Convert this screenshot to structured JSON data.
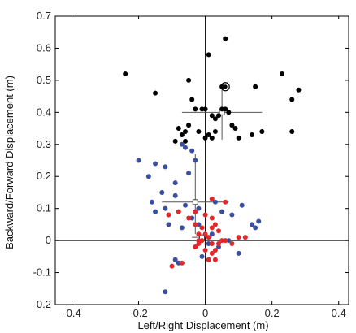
{
  "chart_data": {
    "type": "scatter",
    "title": "",
    "xlabel": "Left/Right Displacement (m)",
    "ylabel": "Backward/Forward Displacement (m)",
    "xlim": [
      -0.45,
      0.43
    ],
    "ylim": [
      -0.2,
      0.7
    ],
    "xticks": [
      -0.4,
      -0.2,
      0,
      0.2,
      0.4
    ],
    "xtick_labels": [
      "-0.4",
      "-0.2",
      "0",
      "0.2",
      "0.4"
    ],
    "yticks": [
      -0.2,
      -0.1,
      0,
      0.1,
      0.2,
      0.3,
      0.4,
      0.5,
      0.6,
      0.7
    ],
    "ytick_labels": [
      "-0.2",
      "-0.1",
      "0",
      "0.1",
      "0.2",
      "0.3",
      "0.4",
      "0.5",
      "0.6",
      "0.7"
    ],
    "grid": false,
    "zero_lines": true,
    "colors": {
      "black": "#000000",
      "blue": "#3a4fa0",
      "red": "#e0282a",
      "axis": "#000000",
      "errorbar": "#555555"
    },
    "series": [
      {
        "color": "black",
        "points": [
          [
            -0.24,
            0.52
          ],
          [
            -0.15,
            0.46
          ],
          [
            -0.05,
            0.5
          ],
          [
            0.01,
            0.58
          ],
          [
            0.06,
            0.63
          ],
          [
            0.05,
            0.48
          ],
          [
            0.15,
            0.48
          ],
          [
            0.23,
            0.52
          ],
          [
            0.26,
            0.44
          ],
          [
            0.28,
            0.47
          ],
          [
            0.26,
            0.34
          ],
          [
            -0.03,
            0.41
          ],
          [
            -0.04,
            0.44
          ],
          [
            -0.01,
            0.41
          ],
          [
            0.0,
            0.41
          ],
          [
            0.02,
            0.39
          ],
          [
            0.04,
            0.39
          ],
          [
            0.06,
            0.41
          ],
          [
            0.07,
            0.4
          ],
          [
            0.05,
            0.41
          ],
          [
            0.03,
            0.38
          ],
          [
            0.08,
            0.36
          ],
          [
            0.09,
            0.35
          ],
          [
            0.1,
            0.32
          ],
          [
            0.14,
            0.33
          ],
          [
            0.17,
            0.34
          ],
          [
            -0.07,
            0.33
          ],
          [
            -0.06,
            0.34
          ],
          [
            -0.08,
            0.35
          ],
          [
            -0.05,
            0.36
          ],
          [
            -0.02,
            0.34
          ],
          [
            0.0,
            0.32
          ],
          [
            0.01,
            0.33
          ],
          [
            0.02,
            0.32
          ],
          [
            0.03,
            0.34
          ],
          [
            -0.06,
            0.31
          ],
          [
            -0.09,
            0.31
          ]
        ]
      },
      {
        "color": "blue",
        "points": [
          [
            -0.2,
            0.25
          ],
          [
            -0.17,
            0.2
          ],
          [
            -0.15,
            0.24
          ],
          [
            -0.12,
            0.23
          ],
          [
            -0.13,
            0.15
          ],
          [
            -0.09,
            0.18
          ],
          [
            -0.05,
            0.21
          ],
          [
            -0.03,
            0.25
          ],
          [
            -0.04,
            0.28
          ],
          [
            -0.07,
            0.3
          ],
          [
            -0.06,
            0.29
          ],
          [
            -0.16,
            0.12
          ],
          [
            -0.15,
            0.09
          ],
          [
            -0.12,
            0.1
          ],
          [
            -0.11,
            0.05
          ],
          [
            -0.09,
            0.14
          ],
          [
            -0.06,
            0.11
          ],
          [
            -0.02,
            0.1
          ],
          [
            0.03,
            0.12
          ],
          [
            0.05,
            0.09
          ],
          [
            0.08,
            0.08
          ],
          [
            0.11,
            0.11
          ],
          [
            0.14,
            0.05
          ],
          [
            0.15,
            0.04
          ],
          [
            0.16,
            0.06
          ],
          [
            -0.07,
            0.04
          ],
          [
            -0.04,
            0.07
          ],
          [
            -0.02,
            0.05
          ],
          [
            0.1,
            -0.04
          ],
          [
            0.07,
            0.0
          ],
          [
            -0.08,
            -0.07
          ],
          [
            -0.09,
            -0.06
          ],
          [
            -0.12,
            -0.16
          ],
          [
            0.01,
            -0.01
          ],
          [
            0.04,
            -0.02
          ],
          [
            -0.01,
            -0.05
          ],
          [
            0.02,
            0.02
          ]
        ]
      },
      {
        "color": "red",
        "points": [
          [
            0.02,
            0.13
          ],
          [
            0.06,
            0.12
          ],
          [
            -0.11,
            0.08
          ],
          [
            -0.08,
            0.09
          ],
          [
            -0.03,
            0.09
          ],
          [
            -0.05,
            0.07
          ],
          [
            0.0,
            0.08
          ],
          [
            0.02,
            0.07
          ],
          [
            0.03,
            0.05
          ],
          [
            -0.03,
            0.05
          ],
          [
            -0.01,
            0.04
          ],
          [
            0.02,
            0.04
          ],
          [
            0.04,
            0.03
          ],
          [
            -0.02,
            0.02
          ],
          [
            0.0,
            0.02
          ],
          [
            0.01,
            0.01
          ],
          [
            -0.01,
            0.0
          ],
          [
            0.02,
            -0.01
          ],
          [
            -0.02,
            -0.01
          ],
          [
            0.04,
            -0.01
          ],
          [
            0.06,
            0.0
          ],
          [
            0.08,
            -0.01
          ],
          [
            0.1,
            0.01
          ],
          [
            -0.03,
            -0.02
          ],
          [
            0.0,
            -0.03
          ],
          [
            0.02,
            -0.04
          ],
          [
            0.03,
            -0.03
          ],
          [
            0.05,
            0.0
          ],
          [
            -0.07,
            -0.07
          ],
          [
            -0.1,
            -0.08
          ],
          [
            0.01,
            -0.06
          ],
          [
            0.03,
            -0.06
          ],
          [
            -0.02,
            0.0
          ],
          [
            0.12,
            0.01
          ]
        ]
      }
    ],
    "errorbars": [
      {
        "color": "black",
        "center": [
          0.05,
          0.4
        ],
        "xerr": 0.12,
        "yerr": [
          0.085,
          0.085
        ]
      },
      {
        "color": "blue",
        "center": [
          -0.03,
          0.12
        ],
        "xerr": 0.1,
        "yerr": [
          0.1,
          0.15
        ]
      },
      {
        "color": "red",
        "center": [
          -0.01,
          0.01
        ],
        "xerr": 0.03,
        "yerr": [
          0.02,
          0.03
        ]
      }
    ],
    "highlighted_point": [
      0.06,
      0.48
    ]
  }
}
